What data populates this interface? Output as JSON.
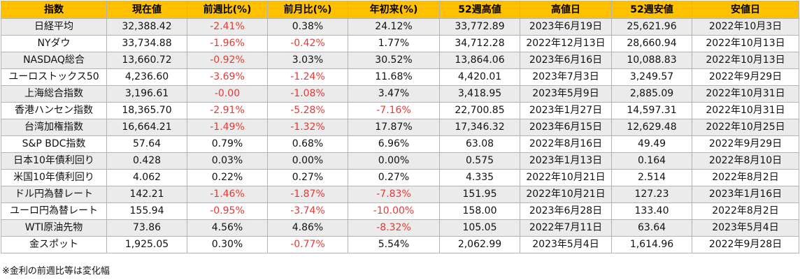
{
  "headers": [
    "指数",
    "現在値",
    "前週比(%)",
    "前月比(%)",
    "年初来(%)",
    "52週高値",
    "高値日",
    "52週安値",
    "安値日"
  ],
  "rows": [
    {
      "name": "日経平均",
      "cells": [
        "32,388.42",
        "-2.41%",
        "0.38%",
        "24.12%",
        "33,772.89",
        "2023年6月19日",
        "25,621.96",
        "2022年10月3日"
      ]
    },
    {
      "name": "NYダウ",
      "cells": [
        "33,734.88",
        "-1.96%",
        "-0.42%",
        "1.77%",
        "34,712.28",
        "2022年12月13日",
        "28,660.94",
        "2022年10月13日"
      ]
    },
    {
      "name": "NASDAQ総合",
      "cells": [
        "13,660.72",
        "-0.92%",
        "3.03%",
        "30.52%",
        "13,864.06",
        "2023年6月16日",
        "10,088.83",
        "2022年10月13日"
      ]
    },
    {
      "name": "ユーロストックス50",
      "cells": [
        "4,236.60",
        "-3.69%",
        "-1.24%",
        "11.68%",
        "4,420.01",
        "2023年7月3日",
        "3,249.57",
        "2022年9月29日"
      ]
    },
    {
      "name": "上海総合指数",
      "cells": [
        "3,196.61",
        "-0.00",
        "-1.08%",
        "3.47%",
        "3,418.95",
        "2023年5月9日",
        "2,885.09",
        "2022年10月31日"
      ]
    },
    {
      "name": "香港ハンセン指数",
      "cells": [
        "18,365.70",
        "-2.91%",
        "-5.28%",
        "-7.16%",
        "22,700.85",
        "2023年1月27日",
        "14,597.31",
        "2022年10月31日"
      ]
    },
    {
      "name": "台湾加権指数",
      "cells": [
        "16,664.21",
        "-1.49%",
        "-1.32%",
        "17.87%",
        "17,346.32",
        "2023年6月15日",
        "12,629.48",
        "2022年10月25日"
      ]
    },
    {
      "name": "S&P BDC指数",
      "cells": [
        "57.64",
        "0.79%",
        "0.68%",
        "6.96%",
        "63.08",
        "2022年8月16日",
        "49.49",
        "2022年9月29日"
      ]
    },
    {
      "name": "日本10年債利回り",
      "cells": [
        "0.428",
        "0.03%",
        "0.00%",
        "0.00%",
        "0.575",
        "2023年1月13日",
        "0.164",
        "2022年8月10日"
      ]
    },
    {
      "name": "米国10年債利回り",
      "cells": [
        "4.062",
        "0.22%",
        "0.27%",
        "0.27%",
        "4.335",
        "2022年10月21日",
        "2.514",
        "2022年8月2日"
      ]
    },
    {
      "name": "ドル円為替レート",
      "cells": [
        "142.21",
        "-1.46%",
        "-1.87%",
        "-7.83%",
        "151.95",
        "2022年10月21日",
        "127.23",
        "2023年1月16日"
      ]
    },
    {
      "name": "ユーロ円為替レート",
      "cells": [
        "155.94",
        "-0.95%",
        "-3.74%",
        "-10.00%",
        "158.00",
        "2023年6月28日",
        "133.40",
        "2022年8月2日"
      ]
    },
    {
      "name": "WTI原油先物",
      "cells": [
        "73.86",
        "4.56%",
        "4.86%",
        "-8.32%",
        "105.05",
        "2022年7月11日",
        "63.64",
        "2023年5月4日"
      ]
    },
    {
      "name": "金スポット",
      "cells": [
        "1,925.05",
        "0.30%",
        "-0.77%",
        "5.54%",
        "2,062.99",
        "2023年5月4日",
        "1,614.96",
        "2022年9月28日"
      ]
    }
  ],
  "note": "※金利の前週比等は変化幅",
  "colors": {
    "header_bg": "#ffc000",
    "negative": "#e53935",
    "row_alt": "#ebebeb",
    "border": "#b3b3b3"
  }
}
